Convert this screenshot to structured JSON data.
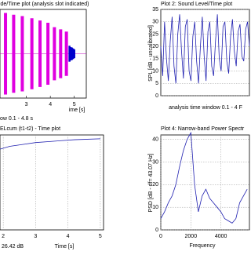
{
  "chart_data": [
    {
      "type": "amplitude",
      "title": "ude/Time plot  (analysis slot indicated)",
      "x_label": "ime [s]",
      "note": "ow 0.1 - 4.8 s",
      "xlim": [
        1.9,
        5.5
      ],
      "xticks": [
        3,
        4,
        5
      ],
      "ylim": [
        -1,
        1
      ],
      "series": [
        {
          "color": "#e000e0",
          "x": [
            2.13,
            2.47,
            2.83,
            3.23,
            3.57,
            3.9,
            4.17,
            4.43,
            4.67
          ],
          "values": [
            0.92,
            0.88,
            0.85,
            0.8,
            0.75,
            0.7,
            0.6,
            0.55,
            0.5
          ]
        },
        {
          "color": "#0000cc",
          "x": [
            4.8,
            4.85,
            4.9,
            4.95,
            5.0
          ],
          "values": [
            0.18,
            0.15,
            0.14,
            0.12,
            0.1
          ]
        }
      ]
    },
    {
      "type": "line",
      "title": "Plot 2: Sound Level/Time plot",
      "x_label": "analysis time window 0.1 - 4 F",
      "y_label": "SPL [dB - uncalibrated]",
      "ylim": [
        0,
        35
      ],
      "yticks": [
        0,
        5,
        10,
        15,
        20,
        25,
        30,
        35
      ],
      "grid": true,
      "color": "#2020b0",
      "values": [
        20,
        8,
        30,
        15,
        6,
        22,
        32,
        12,
        5,
        25,
        33,
        18,
        7,
        28,
        31,
        10,
        6,
        24,
        30,
        14,
        5,
        20,
        32,
        16,
        6,
        26,
        30,
        12,
        8,
        22,
        33,
        15,
        10,
        28,
        30,
        14,
        9,
        24,
        31,
        18,
        12,
        26,
        29,
        16,
        14,
        27,
        30,
        20
      ]
    },
    {
      "type": "line",
      "title": "ELcum (t1-t2) - Time plot",
      "x_label": "Time [s]",
      "note": "26.42 dB",
      "xlim": [
        1.9,
        5.1
      ],
      "xticks": [
        2,
        3,
        4,
        5
      ],
      "ylim": [
        0,
        1
      ],
      "grid": true,
      "color": "#2020b0",
      "x": [
        1.9,
        2.2,
        2.6,
        3,
        3.4,
        3.8,
        4.2,
        4.6,
        5.0
      ],
      "values": [
        0.85,
        0.88,
        0.9,
        0.92,
        0.93,
        0.94,
        0.95,
        0.955,
        0.96
      ]
    },
    {
      "type": "line",
      "title": "Plot 4: Narrow-band Power Spectr",
      "x_label": "Frequency",
      "y_label": "PSD [dB - df= 43.07 Hz]",
      "xlim": [
        0,
        5900
      ],
      "xticks": [
        0,
        2000,
        4000
      ],
      "ylim": [
        0,
        42
      ],
      "yticks": [
        0,
        10,
        20,
        30,
        40
      ],
      "grid": true,
      "color": "#2020b0",
      "x": [
        0,
        250,
        500,
        750,
        1000,
        1250,
        1500,
        1750,
        2000,
        2250,
        2500,
        2750,
        3000,
        3250,
        3500,
        3750,
        4000,
        4250,
        4500,
        4750,
        5000,
        5250,
        5500,
        5750
      ],
      "values": [
        5,
        8,
        12,
        15,
        20,
        28,
        35,
        40,
        43,
        20,
        8,
        15,
        18,
        14,
        12,
        10,
        8,
        5,
        4,
        3,
        5,
        12,
        15,
        18
      ]
    }
  ]
}
